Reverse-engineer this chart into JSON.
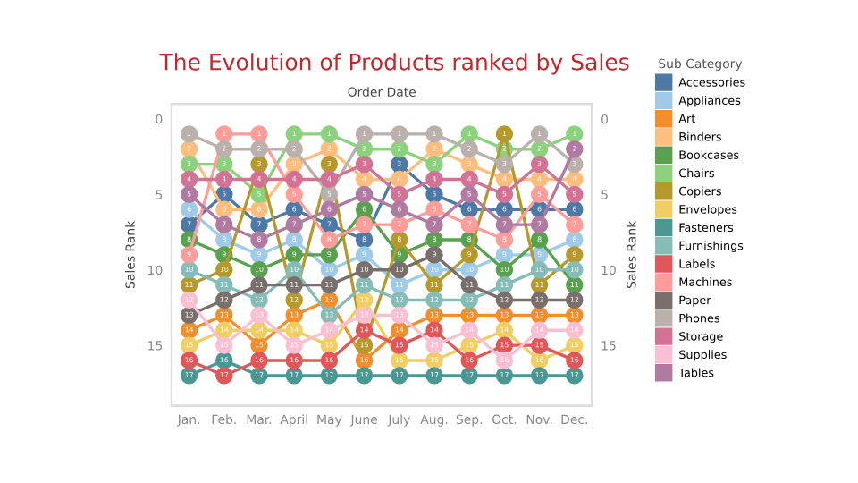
{
  "chart_data": {
    "type": "line",
    "title": "The Evolution of Products ranked by Sales",
    "xlabel": "Order Date",
    "ylabel": "Sales Rank",
    "y2label": "Sales Rank",
    "legend_title": "Sub Category",
    "categories": [
      "Jan.",
      "Feb.",
      "Mar.",
      "April",
      "May",
      "June",
      "July",
      "Aug.",
      "Sep.",
      "Oct.",
      "Nov.",
      "Dec."
    ],
    "ylim": [
      19,
      -1
    ],
    "yticks": [
      0,
      5,
      10,
      15
    ],
    "y2lim": [
      19,
      -1
    ],
    "y2ticks": [
      0,
      5,
      10,
      15
    ],
    "marker": "circle",
    "line_style": "solid",
    "legend": "right",
    "grid": false,
    "data_labels": true,
    "series": [
      {
        "name": "Accessories",
        "color": "#4e79a7",
        "values": [
          7,
          5,
          7,
          6,
          7,
          8,
          3,
          5,
          6,
          6,
          6,
          6
        ]
      },
      {
        "name": "Appliances",
        "color": "#a0cbe8",
        "values": [
          6,
          8,
          9,
          8,
          10,
          9,
          11,
          10,
          10,
          9,
          9,
          8
        ]
      },
      {
        "name": "Art",
        "color": "#f28e2b",
        "values": [
          14,
          13,
          15,
          13,
          12,
          16,
          14,
          13,
          13,
          13,
          13,
          13
        ]
      },
      {
        "name": "Binders",
        "color": "#ffbe7d",
        "values": [
          2,
          6,
          6,
          3,
          2,
          4,
          4,
          2,
          3,
          4,
          4,
          4
        ]
      },
      {
        "name": "Bookcases",
        "color": "#59a14f",
        "values": [
          8,
          9,
          10,
          9,
          9,
          6,
          9,
          8,
          8,
          10,
          8,
          11
        ]
      },
      {
        "name": "Chairs",
        "color": "#8cd17d",
        "values": [
          3,
          3,
          5,
          1,
          1,
          2,
          2,
          3,
          1,
          2,
          2,
          1
        ]
      },
      {
        "name": "Copiers",
        "color": "#b6992d",
        "values": [
          11,
          10,
          3,
          12,
          3,
          15,
          8,
          11,
          9,
          1,
          11,
          9
        ]
      },
      {
        "name": "Envelopes",
        "color": "#f1ce63",
        "values": [
          15,
          14,
          14,
          14,
          15,
          12,
          16,
          16,
          15,
          14,
          16,
          15
        ]
      },
      {
        "name": "Fasteners",
        "color": "#499894",
        "values": [
          17,
          16,
          17,
          17,
          17,
          17,
          17,
          17,
          17,
          17,
          17,
          17
        ]
      },
      {
        "name": "Furnishings",
        "color": "#86bcb6",
        "values": [
          10,
          11,
          12,
          10,
          13,
          11,
          12,
          12,
          12,
          11,
          10,
          10
        ]
      },
      {
        "name": "Labels",
        "color": "#e15759",
        "values": [
          16,
          17,
          16,
          16,
          16,
          14,
          15,
          14,
          16,
          15,
          15,
          16
        ]
      },
      {
        "name": "Machines",
        "color": "#ff9d9a",
        "values": [
          9,
          1,
          1,
          5,
          8,
          7,
          7,
          6,
          7,
          8,
          5,
          7
        ]
      },
      {
        "name": "Paper",
        "color": "#79706e",
        "values": [
          13,
          12,
          11,
          11,
          11,
          10,
          10,
          9,
          11,
          12,
          12,
          12
        ]
      },
      {
        "name": "Phones",
        "color": "#bab0ac",
        "values": [
          1,
          2,
          2,
          2,
          5,
          1,
          1,
          1,
          2,
          3,
          1,
          3
        ]
      },
      {
        "name": "Storage",
        "color": "#d37295",
        "values": [
          4,
          4,
          4,
          4,
          4,
          3,
          5,
          4,
          4,
          5,
          3,
          5
        ]
      },
      {
        "name": "Supplies",
        "color": "#fabfd2",
        "values": [
          12,
          15,
          13,
          15,
          14,
          13,
          13,
          15,
          14,
          16,
          14,
          14
        ]
      },
      {
        "name": "Tables",
        "color": "#b07aa1",
        "values": [
          5,
          7,
          8,
          7,
          6,
          5,
          6,
          7,
          5,
          7,
          7,
          2
        ]
      }
    ]
  }
}
